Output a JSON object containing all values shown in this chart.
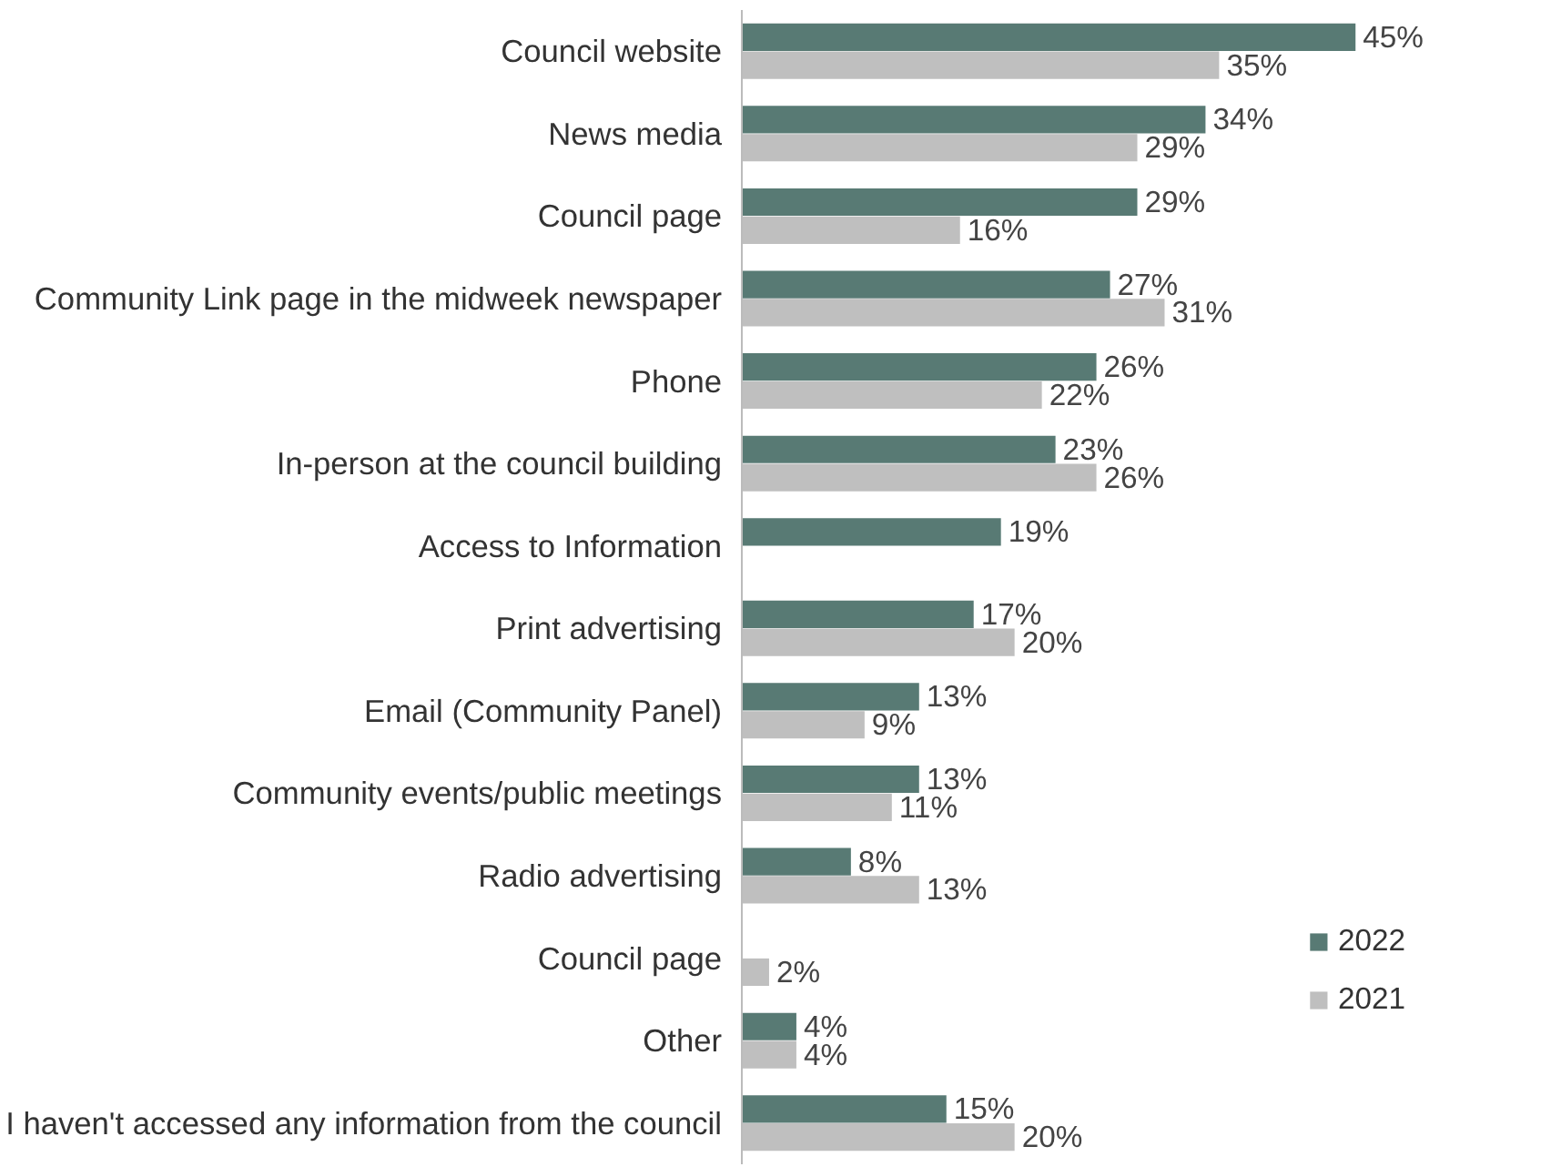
{
  "chart_data": {
    "type": "bar",
    "orientation": "horizontal",
    "categories": [
      "Council website",
      "News media",
      "Council page",
      "Community Link page in the midweek newspaper",
      "Phone",
      "In-person at the council building",
      "Access to Information",
      "Print advertising",
      "Email (Community Panel)",
      "Community events/public meetings",
      "Radio advertising",
      "Council page",
      "Other",
      "I haven't accessed any information from the council"
    ],
    "series": [
      {
        "name": "2022",
        "color": "#587a74",
        "values": [
          45,
          34,
          29,
          27,
          26,
          23,
          19,
          17,
          13,
          13,
          8,
          null,
          4,
          15
        ],
        "value_labels": [
          "45%",
          "34%",
          "29%",
          "27%",
          "26%",
          "23%",
          "19%",
          "17%",
          "13%",
          "13%",
          "8%",
          null,
          "4%",
          "15%"
        ]
      },
      {
        "name": "2021",
        "color": "#bfbfbf",
        "values": [
          35,
          29,
          16,
          31,
          22,
          26,
          null,
          20,
          9,
          11,
          13,
          2,
          4,
          20
        ],
        "value_labels": [
          "35%",
          "29%",
          "16%",
          "31%",
          "22%",
          "26%",
          null,
          "20%",
          "9%",
          "11%",
          "13%",
          "2%",
          "4%",
          "20%"
        ]
      }
    ],
    "legend": "bottom right",
    "grid": false
  }
}
